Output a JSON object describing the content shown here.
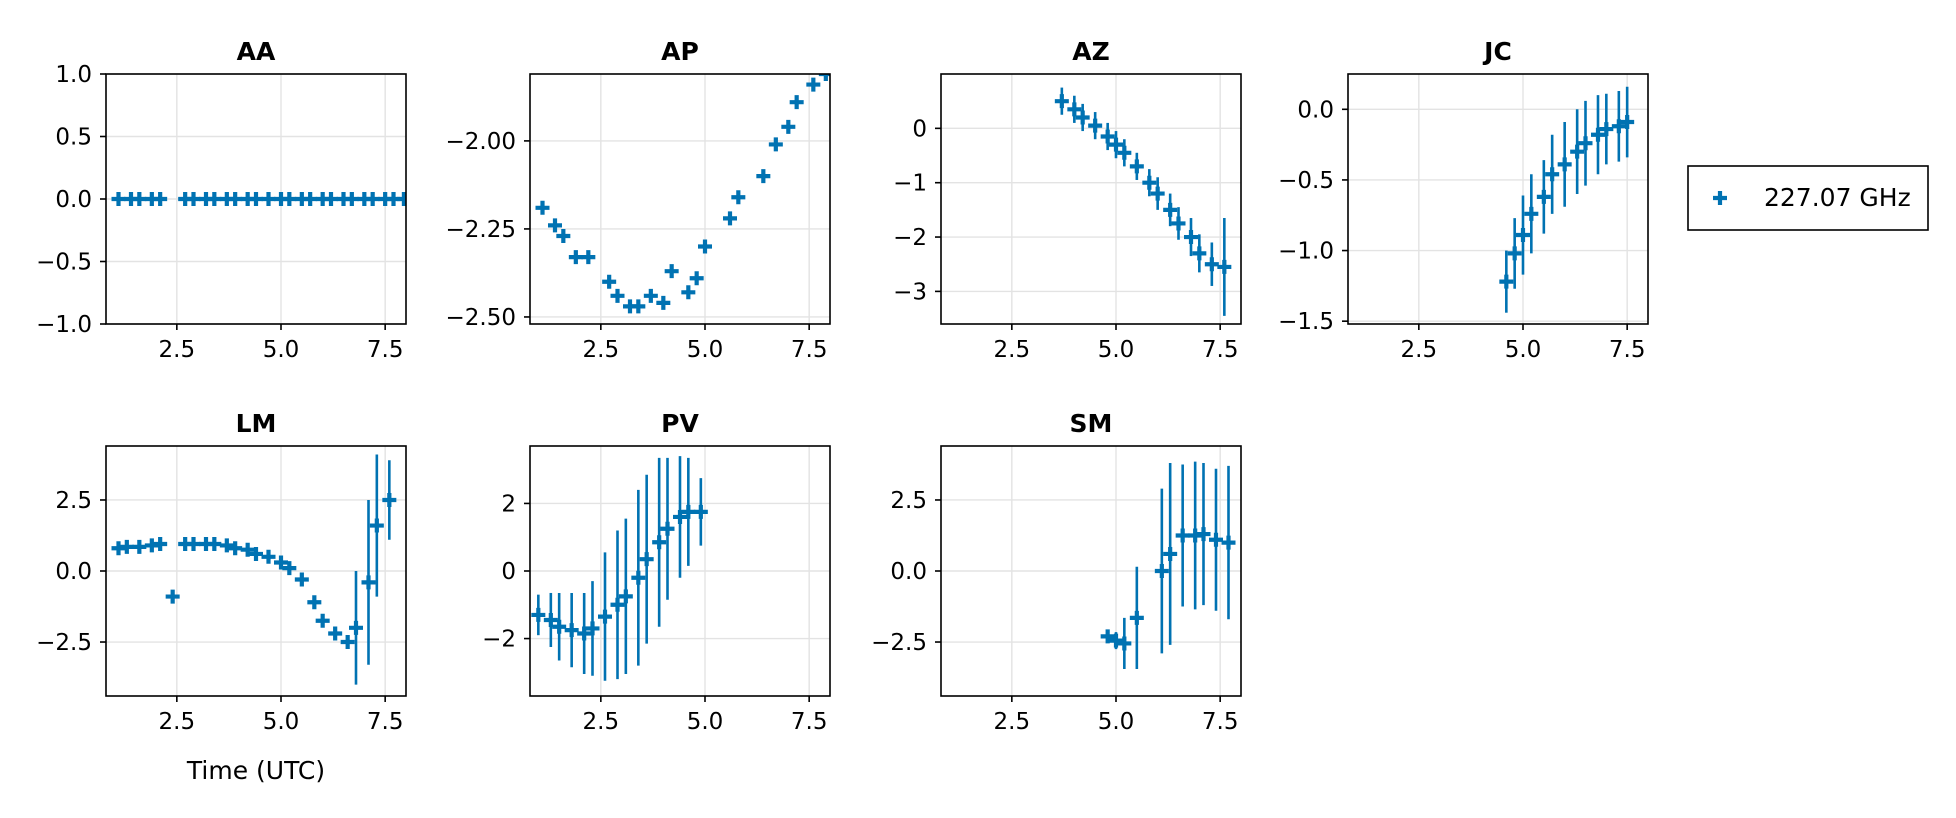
{
  "chart_data": {
    "type": "scatter",
    "marker": "cross",
    "series_color": "#0072b2",
    "legend": {
      "label": "227.07 GHz",
      "position": "right"
    },
    "xlabel": "Time (UTC)",
    "grid": true,
    "panels": [
      {
        "title": "AA",
        "xlim": [
          0.8,
          8.0
        ],
        "ylim": [
          -1.0,
          1.0
        ],
        "xticks": [
          2.5,
          5.0,
          7.5
        ],
        "xtick_labels": [
          "2.5",
          "5.0",
          "7.5"
        ],
        "yticks": [
          -1.0,
          -0.5,
          0.0,
          0.5,
          1.0
        ],
        "ytick_labels": [
          "−1.0",
          "−0.5",
          "0.0",
          "0.5",
          "1.0"
        ],
        "points": [
          [
            1.1,
            0,
            0
          ],
          [
            1.4,
            0,
            0
          ],
          [
            1.6,
            0,
            0
          ],
          [
            1.9,
            0,
            0
          ],
          [
            2.1,
            0,
            0
          ],
          [
            2.7,
            0,
            0
          ],
          [
            2.9,
            0,
            0
          ],
          [
            3.2,
            0,
            0
          ],
          [
            3.4,
            0,
            0
          ],
          [
            3.7,
            0,
            0
          ],
          [
            3.9,
            0,
            0
          ],
          [
            4.2,
            0,
            0
          ],
          [
            4.4,
            0,
            0
          ],
          [
            4.7,
            0,
            0
          ],
          [
            5.0,
            0,
            0
          ],
          [
            5.2,
            0,
            0
          ],
          [
            5.5,
            0,
            0
          ],
          [
            5.7,
            0,
            0
          ],
          [
            6.0,
            0,
            0
          ],
          [
            6.2,
            0,
            0
          ],
          [
            6.5,
            0,
            0
          ],
          [
            6.7,
            0,
            0
          ],
          [
            7.0,
            0,
            0
          ],
          [
            7.2,
            0,
            0
          ],
          [
            7.5,
            0,
            0
          ],
          [
            7.7,
            0,
            0
          ],
          [
            7.95,
            0,
            0
          ]
        ]
      },
      {
        "title": "AP",
        "xlim": [
          0.8,
          8.0
        ],
        "ylim": [
          -2.52,
          -1.81
        ],
        "xticks": [
          2.5,
          5.0,
          7.5
        ],
        "xtick_labels": [
          "2.5",
          "5.0",
          "7.5"
        ],
        "yticks": [
          -2.5,
          -2.25,
          -2.0
        ],
        "ytick_labels": [
          "−2.50",
          "−2.25",
          "−2.00"
        ],
        "points": [
          [
            1.1,
            -2.19,
            0
          ],
          [
            1.4,
            -2.24,
            0
          ],
          [
            1.6,
            -2.27,
            0
          ],
          [
            1.9,
            -2.33,
            0
          ],
          [
            2.2,
            -2.33,
            0
          ],
          [
            2.7,
            -2.4,
            0
          ],
          [
            2.9,
            -2.44,
            0
          ],
          [
            3.2,
            -2.47,
            0
          ],
          [
            3.4,
            -2.47,
            0
          ],
          [
            3.7,
            -2.44,
            0
          ],
          [
            4.0,
            -2.46,
            0
          ],
          [
            4.2,
            -2.37,
            0
          ],
          [
            4.6,
            -2.43,
            0
          ],
          [
            4.8,
            -2.39,
            0
          ],
          [
            5.0,
            -2.3,
            0
          ],
          [
            5.6,
            -2.22,
            0
          ],
          [
            5.8,
            -2.16,
            0
          ],
          [
            6.4,
            -2.1,
            0
          ],
          [
            6.7,
            -2.01,
            0
          ],
          [
            7.0,
            -1.96,
            0
          ],
          [
            7.2,
            -1.89,
            0
          ],
          [
            7.6,
            -1.84,
            0
          ],
          [
            7.9,
            -1.81,
            0
          ]
        ]
      },
      {
        "title": "AZ",
        "xlim": [
          0.8,
          8.0
        ],
        "ylim": [
          -3.6,
          1.0
        ],
        "xticks": [
          2.5,
          5.0,
          7.5
        ],
        "xtick_labels": [
          "2.5",
          "5.0",
          "7.5"
        ],
        "yticks": [
          -3,
          -2,
          -1,
          0
        ],
        "ytick_labels": [
          "−3",
          "−2",
          "−1",
          "0"
        ],
        "points": [
          [
            3.7,
            0.5,
            0.25
          ],
          [
            4.0,
            0.35,
            0.25
          ],
          [
            4.2,
            0.2,
            0.25
          ],
          [
            4.5,
            0.05,
            0.25
          ],
          [
            4.8,
            -0.15,
            0.25
          ],
          [
            5.0,
            -0.3,
            0.25
          ],
          [
            5.2,
            -0.45,
            0.25
          ],
          [
            5.5,
            -0.7,
            0.25
          ],
          [
            5.8,
            -1.0,
            0.25
          ],
          [
            6.0,
            -1.2,
            0.3
          ],
          [
            6.3,
            -1.5,
            0.3
          ],
          [
            6.5,
            -1.75,
            0.3
          ],
          [
            6.8,
            -2.0,
            0.35
          ],
          [
            7.0,
            -2.3,
            0.35
          ],
          [
            7.3,
            -2.5,
            0.4
          ],
          [
            7.6,
            -2.55,
            0.9
          ]
        ]
      },
      {
        "title": "JC",
        "xlim": [
          0.8,
          8.0
        ],
        "ylim": [
          -1.52,
          0.25
        ],
        "xticks": [
          2.5,
          5.0,
          7.5
        ],
        "xtick_labels": [
          "2.5",
          "5.0",
          "7.5"
        ],
        "yticks": [
          -1.5,
          -1.0,
          -0.5,
          0.0
        ],
        "ytick_labels": [
          "−1.5",
          "−1.0",
          "−0.5",
          "0.0"
        ],
        "points": [
          [
            4.6,
            -1.22,
            0.22
          ],
          [
            4.8,
            -1.02,
            0.25
          ],
          [
            5.0,
            -0.89,
            0.28
          ],
          [
            5.2,
            -0.74,
            0.28
          ],
          [
            5.5,
            -0.62,
            0.26
          ],
          [
            5.7,
            -0.46,
            0.28
          ],
          [
            6.0,
            -0.39,
            0.3
          ],
          [
            6.3,
            -0.3,
            0.3
          ],
          [
            6.5,
            -0.24,
            0.3
          ],
          [
            6.8,
            -0.18,
            0.28
          ],
          [
            7.0,
            -0.14,
            0.25
          ],
          [
            7.3,
            -0.12,
            0.25
          ],
          [
            7.5,
            -0.09,
            0.25
          ]
        ]
      },
      {
        "title": "LM",
        "xlim": [
          0.8,
          8.0
        ],
        "ylim": [
          -4.4,
          4.4
        ],
        "xticks": [
          2.5,
          5.0,
          7.5
        ],
        "xtick_labels": [
          "2.5",
          "5.0",
          "7.5"
        ],
        "yticks": [
          -2.5,
          0.0,
          2.5
        ],
        "ytick_labels": [
          "−2.5",
          "0.0",
          "2.5"
        ],
        "points": [
          [
            1.1,
            0.8,
            0
          ],
          [
            1.3,
            0.85,
            0
          ],
          [
            1.6,
            0.85,
            0
          ],
          [
            1.9,
            0.9,
            0
          ],
          [
            2.1,
            0.95,
            0
          ],
          [
            2.4,
            -0.9,
            0
          ],
          [
            2.7,
            0.95,
            0
          ],
          [
            2.9,
            0.95,
            0
          ],
          [
            3.2,
            0.95,
            0
          ],
          [
            3.4,
            0.95,
            0
          ],
          [
            3.7,
            0.9,
            0
          ],
          [
            3.9,
            0.8,
            0
          ],
          [
            4.2,
            0.75,
            0
          ],
          [
            4.4,
            0.6,
            0
          ],
          [
            4.7,
            0.5,
            0
          ],
          [
            5.0,
            0.3,
            0
          ],
          [
            5.2,
            0.1,
            0
          ],
          [
            5.5,
            -0.3,
            0
          ],
          [
            5.8,
            -1.1,
            0
          ],
          [
            6.0,
            -1.75,
            0
          ],
          [
            6.3,
            -2.2,
            0
          ],
          [
            6.6,
            -2.5,
            0
          ],
          [
            6.8,
            -2.0,
            2.0
          ],
          [
            7.1,
            -0.4,
            2.9
          ],
          [
            7.3,
            1.6,
            2.5
          ],
          [
            7.6,
            2.5,
            1.4
          ]
        ]
      },
      {
        "title": "PV",
        "xlim": [
          0.8,
          8.0
        ],
        "ylim": [
          -3.7,
          3.7
        ],
        "xticks": [
          2.5,
          5.0,
          7.5
        ],
        "xtick_labels": [
          "2.5",
          "5.0",
          "7.5"
        ],
        "yticks": [
          -2,
          0,
          2
        ],
        "ytick_labels": [
          "−2",
          "0",
          "2"
        ],
        "points": [
          [
            1.0,
            -1.3,
            0.6
          ],
          [
            1.3,
            -1.45,
            0.8
          ],
          [
            1.5,
            -1.65,
            1.0
          ],
          [
            1.8,
            -1.75,
            1.1
          ],
          [
            2.1,
            -1.85,
            1.2
          ],
          [
            2.3,
            -1.7,
            1.4
          ],
          [
            2.6,
            -1.35,
            1.9
          ],
          [
            2.9,
            -1.0,
            2.2
          ],
          [
            3.1,
            -0.75,
            2.3
          ],
          [
            3.4,
            -0.2,
            2.6
          ],
          [
            3.6,
            0.35,
            2.5
          ],
          [
            3.9,
            0.85,
            2.5
          ],
          [
            4.1,
            1.25,
            2.1
          ],
          [
            4.4,
            1.6,
            1.8
          ],
          [
            4.6,
            1.75,
            1.6
          ],
          [
            4.9,
            1.75,
            1.0
          ]
        ]
      },
      {
        "title": "SM",
        "xlim": [
          0.8,
          8.0
        ],
        "ylim": [
          -4.4,
          4.4
        ],
        "xticks": [
          2.5,
          5.0,
          7.5
        ],
        "xtick_labels": [
          "2.5",
          "5.0",
          "7.5"
        ],
        "yticks": [
          -2.5,
          0.0,
          2.5
        ],
        "ytick_labels": [
          "−2.5",
          "0.0",
          "2.5"
        ],
        "points": [
          [
            4.8,
            -2.3,
            0
          ],
          [
            5.0,
            -2.45,
            0.3
          ],
          [
            5.2,
            -2.55,
            0.9
          ],
          [
            5.5,
            -1.65,
            1.8
          ],
          [
            6.1,
            0.0,
            2.9
          ],
          [
            6.3,
            0.6,
            3.2
          ],
          [
            6.6,
            1.25,
            2.5
          ],
          [
            6.9,
            1.25,
            2.6
          ],
          [
            7.1,
            1.3,
            2.5
          ],
          [
            7.4,
            1.1,
            2.5
          ],
          [
            7.7,
            1.0,
            2.7
          ]
        ]
      }
    ]
  }
}
